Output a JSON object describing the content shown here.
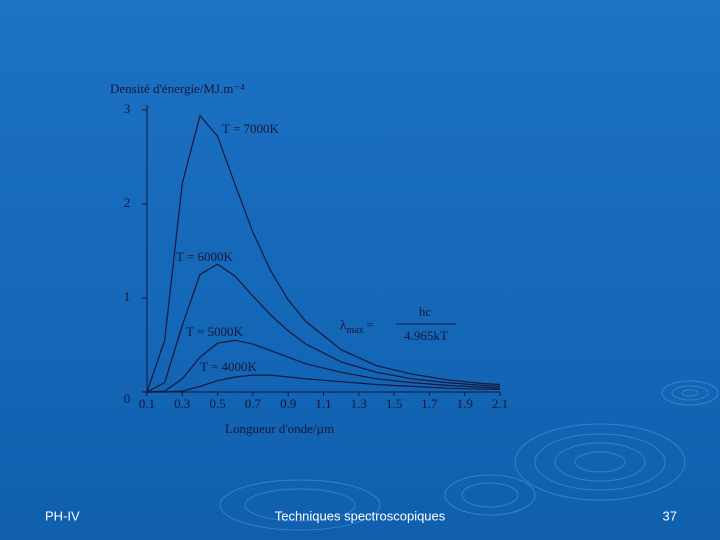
{
  "chart_data": {
    "type": "line",
    "ylabel": "Densité d'énergie/MJ.m⁻⁴",
    "xlabel": "Longueur d'onde/µm",
    "x": [
      0.1,
      0.2,
      0.3,
      0.4,
      0.5,
      0.6,
      0.7,
      0.8,
      0.9,
      1.0,
      1.2,
      1.4,
      1.6,
      1.8,
      2.0,
      2.1
    ],
    "series": [
      {
        "name": "T = 7000K",
        "color": "#15183a",
        "values": [
          0,
          0.55,
          2.22,
          2.94,
          2.72,
          2.2,
          1.7,
          1.29,
          0.98,
          0.75,
          0.45,
          0.28,
          0.19,
          0.13,
          0.09,
          0.08
        ]
      },
      {
        "name": "T = 6000K",
        "color": "#15183a",
        "values": [
          0,
          0.1,
          0.71,
          1.25,
          1.36,
          1.23,
          1.02,
          0.82,
          0.65,
          0.51,
          0.32,
          0.21,
          0.14,
          0.1,
          0.07,
          0.06
        ]
      },
      {
        "name": "T = 5000K",
        "color": "#15183a",
        "values": [
          0,
          0.01,
          0.14,
          0.37,
          0.52,
          0.55,
          0.51,
          0.44,
          0.37,
          0.3,
          0.21,
          0.14,
          0.1,
          0.07,
          0.05,
          0.04
        ]
      },
      {
        "name": "T = 4000K",
        "color": "#15183a",
        "values": [
          0,
          0,
          0.01,
          0.06,
          0.12,
          0.16,
          0.18,
          0.18,
          0.16,
          0.14,
          0.11,
          0.08,
          0.06,
          0.04,
          0.03,
          0.03
        ]
      }
    ],
    "xlim": [
      0.1,
      2.1
    ],
    "xticks": [
      0.1,
      0.3,
      0.5,
      0.7,
      0.9,
      1.1,
      1.3,
      1.5,
      1.7,
      1.9,
      2.1
    ],
    "ylim": [
      0,
      3
    ],
    "yticks": [
      0,
      1,
      2,
      3
    ],
    "formula": {
      "parts": [
        "λ",
        "max",
        "="
      ],
      "numerator": "hc",
      "denominator": "4.965kT"
    }
  },
  "footer": {
    "left": "PH-IV",
    "center": "Techniques spectroscopiques",
    "right": "37"
  }
}
